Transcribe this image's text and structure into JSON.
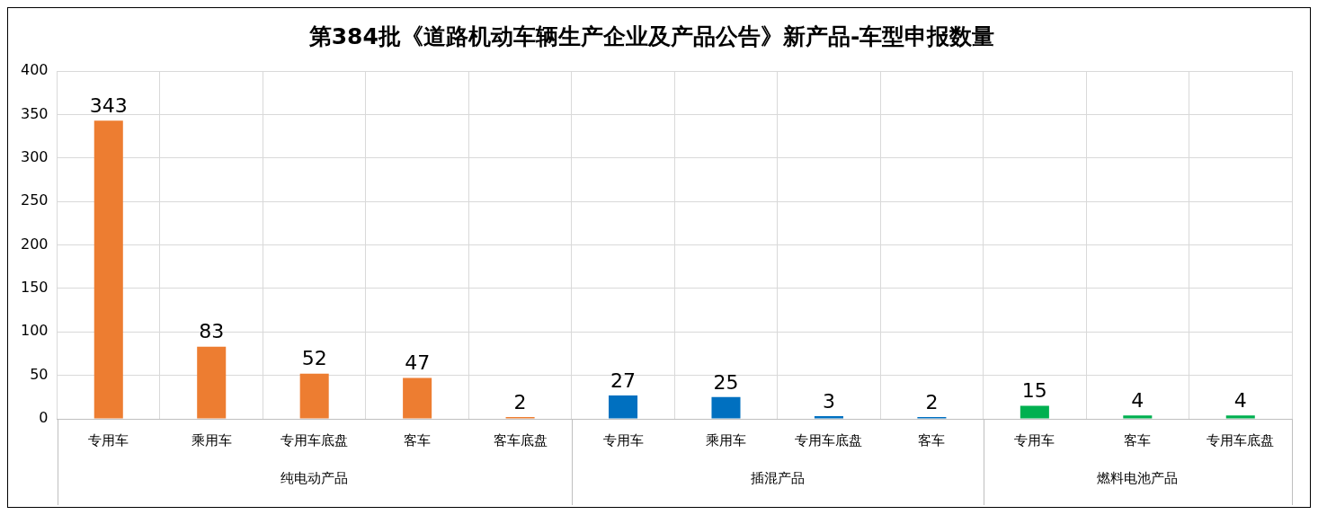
{
  "chart_data": {
    "type": "bar",
    "title": "第384批《道路机动车辆生产企业及产品公告》新产品-车型申报数量",
    "categories": [
      "专用车",
      "乘用车",
      "专用车底盘",
      "客车",
      "客车底盘",
      "专用车",
      "乘用车",
      "专用车底盘",
      "客车",
      "专用车",
      "客车",
      "专用车底盘"
    ],
    "series": [
      {
        "color": "#ed7d31",
        "values": [
          343,
          83,
          52,
          47,
          2,
          null,
          null,
          null,
          null,
          null,
          null,
          null
        ]
      },
      {
        "color": "#0070c0",
        "values": [
          null,
          null,
          null,
          null,
          null,
          27,
          25,
          3,
          2,
          null,
          null,
          null
        ]
      },
      {
        "color": "#00b050",
        "values": [
          null,
          null,
          null,
          null,
          null,
          null,
          null,
          null,
          null,
          15,
          4,
          4
        ]
      }
    ],
    "ylim": [
      0,
      400
    ],
    "yticks": [
      0,
      50,
      100,
      150,
      200,
      250,
      300,
      350,
      400
    ],
    "grid": true,
    "data_labels": true,
    "annotations": [
      "纯电动产品",
      "插混产品",
      "燃料电池产品"
    ]
  }
}
